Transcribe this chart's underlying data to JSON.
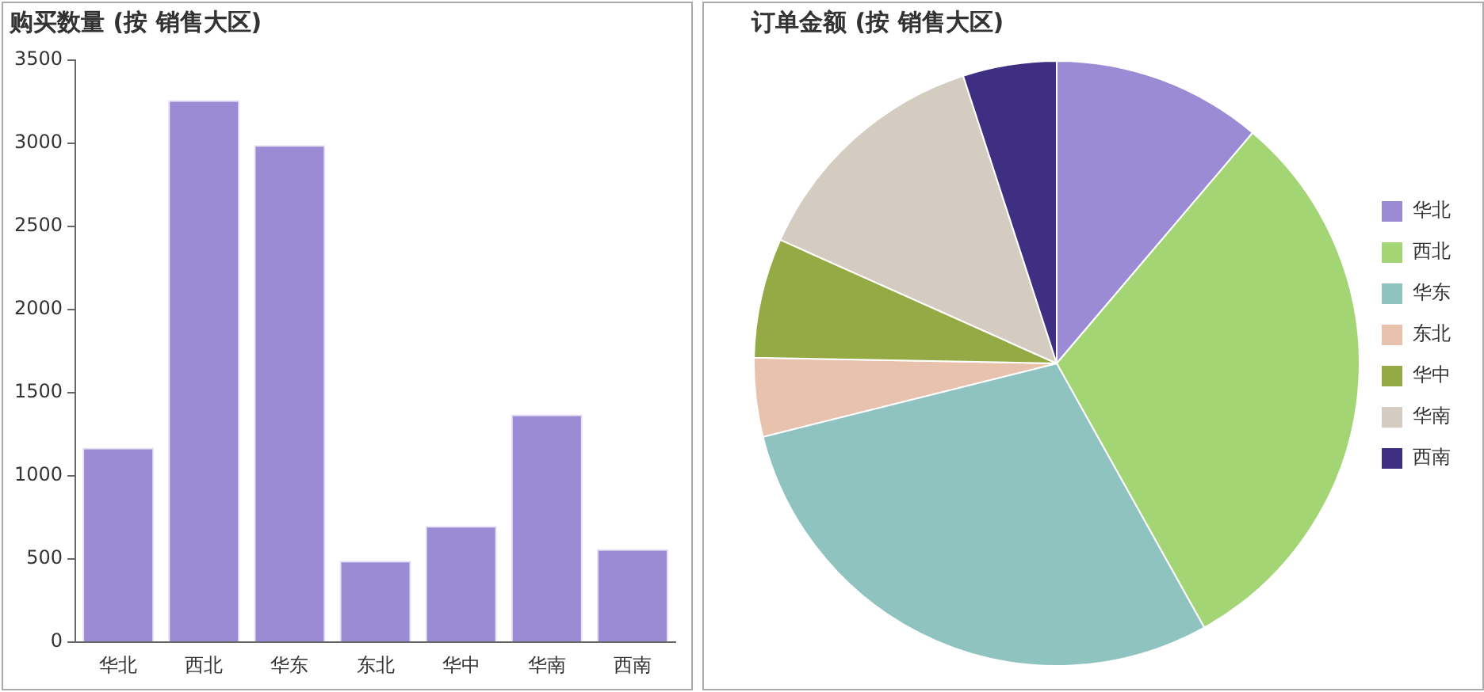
{
  "chart_data": [
    {
      "type": "bar",
      "title": "购买数量 (按 销售大区)",
      "categories": [
        "华北",
        "西北",
        "华东",
        "东北",
        "华中",
        "华南",
        "西南"
      ],
      "series": [
        {
          "color": "#9b8bd4",
          "values": [
            1170,
            3260,
            2990,
            490,
            700,
            1370,
            560
          ]
        }
      ],
      "ylim": [
        0,
        3500
      ],
      "yticks": [
        0,
        500,
        1000,
        1500,
        2000,
        2500,
        3000,
        3500
      ],
      "grid": false,
      "legend": false
    },
    {
      "type": "pie",
      "title": "订单金额 (按 销售大区)",
      "categories": [
        "华北",
        "西北",
        "华东",
        "东北",
        "华中",
        "华南",
        "西南"
      ],
      "values": [
        11.2,
        30.7,
        29.2,
        4.2,
        6.4,
        13.3,
        5.0
      ],
      "colors": [
        "#9b8bd4",
        "#a3d574",
        "#8ec3c0",
        "#e9c2ad",
        "#95aa45",
        "#d4ccc1",
        "#3e2f82"
      ],
      "legend": "right"
    }
  ]
}
